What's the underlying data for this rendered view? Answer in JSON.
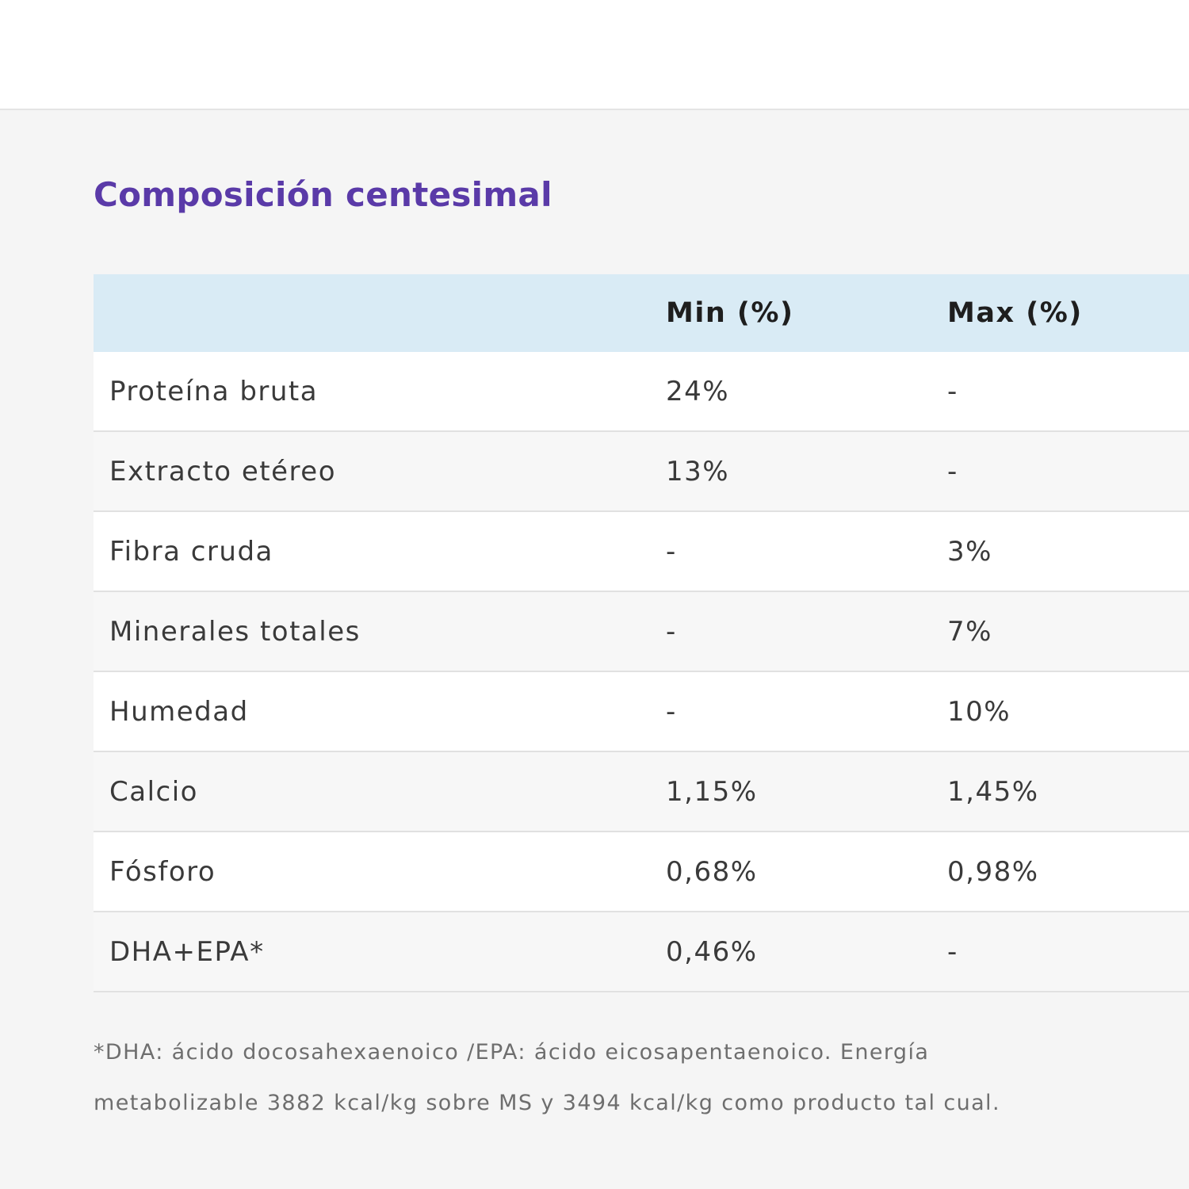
{
  "section": {
    "title": "Composición centesimal"
  },
  "table": {
    "headers": {
      "name": "",
      "min": "Min (%)",
      "max": "Max (%)"
    },
    "rows": [
      {
        "name": "Proteína bruta",
        "min": "24%",
        "max": "-"
      },
      {
        "name": "Extracto etéreo",
        "min": "13%",
        "max": "-"
      },
      {
        "name": "Fibra cruda",
        "min": "-",
        "max": "3%"
      },
      {
        "name": "Minerales totales",
        "min": "-",
        "max": "7%"
      },
      {
        "name": "Humedad",
        "min": "-",
        "max": "10%"
      },
      {
        "name": "Calcio",
        "min": "1,15%",
        "max": "1,45%"
      },
      {
        "name": "Fósforo",
        "min": "0,68%",
        "max": "0,98%"
      },
      {
        "name": "DHA+EPA*",
        "min": "0,46%",
        "max": "-"
      }
    ]
  },
  "footnote": {
    "line1": "*DHA: ácido docosahexaenoico /EPA: ácido eicosapentaenoico. Energía",
    "line2": "metabolizable 3882 kcal/kg sobre MS y 3494 kcal/kg como producto tal cual."
  },
  "colors": {
    "title": "#5a3aa8",
    "header_bg": "#d9ebf5",
    "section_bg": "#f5f5f5",
    "row_alt_bg": "#f7f7f7"
  }
}
